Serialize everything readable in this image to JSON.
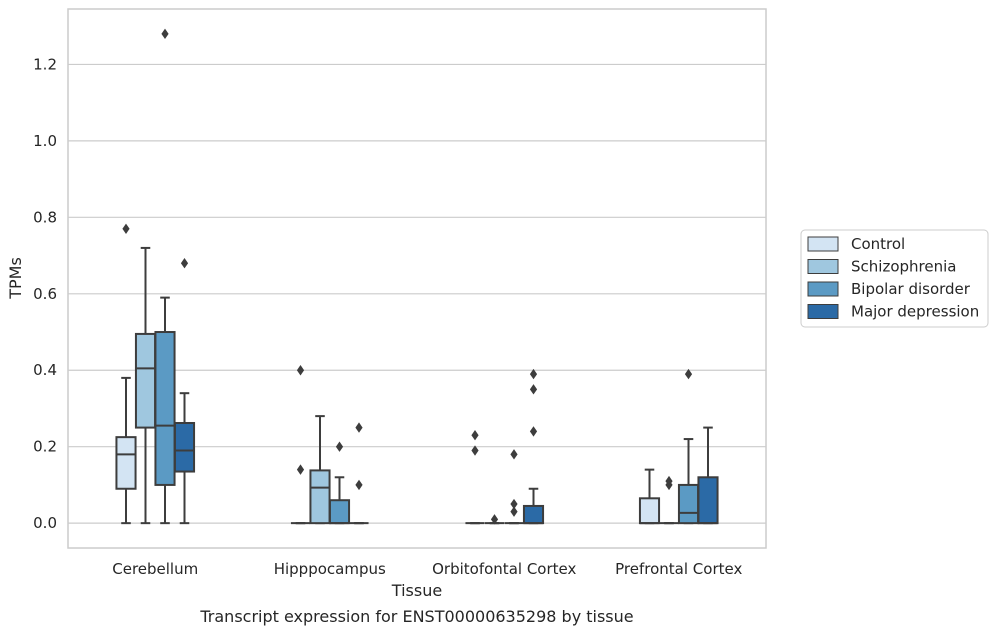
{
  "caption": "Transcript expression for ENST00000635298 by tissue",
  "chart_data": {
    "type": "box",
    "xlabel": "Tissue",
    "ylabel": "TPMs",
    "ylim": [
      -0.065,
      1.345
    ],
    "yticks": [
      0.0,
      0.2,
      0.4,
      0.6,
      0.8,
      1.0,
      1.2
    ],
    "ytick_labels": [
      "0.0",
      "0.2",
      "0.4",
      "0.6",
      "0.8",
      "1.0",
      "1.2"
    ],
    "grid": "horizontal",
    "legend_position": "right",
    "categories": [
      "Cerebellum",
      "Hipppocampus",
      "Orbitofontal Cortex",
      "Prefrontal Cortex"
    ],
    "series": [
      {
        "name": "Control",
        "color": "#d3e4f3",
        "boxes": [
          {
            "whislo": 0.0,
            "q1": 0.09,
            "med": 0.18,
            "q3": 0.225,
            "whishi": 0.38,
            "fliers": [
              0.77
            ]
          },
          {
            "whislo": 0.0,
            "q1": 0.0,
            "med": 0.0,
            "q3": 0.0,
            "whishi": 0.0,
            "fliers": [
              0.14,
              0.4
            ]
          },
          {
            "whislo": 0.0,
            "q1": 0.0,
            "med": 0.0,
            "q3": 0.0,
            "whishi": 0.0,
            "fliers": [
              0.19,
              0.23
            ]
          },
          {
            "whislo": 0.0,
            "q1": 0.0,
            "med": 0.0,
            "q3": 0.065,
            "whishi": 0.14,
            "fliers": []
          }
        ]
      },
      {
        "name": "Schizophrenia",
        "color": "#9fc7df",
        "boxes": [
          {
            "whislo": 0.0,
            "q1": 0.25,
            "med": 0.405,
            "q3": 0.495,
            "whishi": 0.72,
            "fliers": []
          },
          {
            "whislo": 0.0,
            "q1": 0.0,
            "med": 0.093,
            "q3": 0.138,
            "whishi": 0.28,
            "fliers": []
          },
          {
            "whislo": 0.0,
            "q1": 0.0,
            "med": 0.0,
            "q3": 0.0,
            "whishi": 0.0,
            "fliers": [
              0.01
            ]
          },
          {
            "whislo": 0.0,
            "q1": 0.0,
            "med": 0.0,
            "q3": 0.0,
            "whishi": 0.0,
            "fliers": [
              0.1,
              0.11
            ]
          }
        ]
      },
      {
        "name": "Bipolar disorder",
        "color": "#5b9ac4",
        "boxes": [
          {
            "whislo": 0.0,
            "q1": 0.1,
            "med": 0.255,
            "q3": 0.5,
            "whishi": 0.59,
            "fliers": [
              1.28
            ]
          },
          {
            "whislo": 0.0,
            "q1": 0.0,
            "med": 0.0,
            "q3": 0.06,
            "whishi": 0.12,
            "fliers": [
              0.2
            ]
          },
          {
            "whislo": 0.0,
            "q1": 0.0,
            "med": 0.0,
            "q3": 0.0,
            "whishi": 0.0,
            "fliers": [
              0.03,
              0.05,
              0.18
            ]
          },
          {
            "whislo": 0.0,
            "q1": 0.0,
            "med": 0.027,
            "q3": 0.1,
            "whishi": 0.22,
            "fliers": [
              0.39
            ]
          }
        ]
      },
      {
        "name": "Major depression",
        "color": "#2b6aa6",
        "boxes": [
          {
            "whislo": 0.0,
            "q1": 0.135,
            "med": 0.19,
            "q3": 0.262,
            "whishi": 0.34,
            "fliers": [
              0.68
            ]
          },
          {
            "whislo": 0.0,
            "q1": 0.0,
            "med": 0.0,
            "q3": 0.0,
            "whishi": 0.0,
            "fliers": [
              0.1,
              0.25
            ]
          },
          {
            "whislo": 0.0,
            "q1": 0.0,
            "med": 0.0,
            "q3": 0.045,
            "whishi": 0.09,
            "fliers": [
              0.24,
              0.35,
              0.39
            ]
          },
          {
            "whislo": 0.0,
            "q1": 0.0,
            "med": 0.0,
            "q3": 0.12,
            "whishi": 0.25,
            "fliers": []
          }
        ]
      }
    ]
  }
}
